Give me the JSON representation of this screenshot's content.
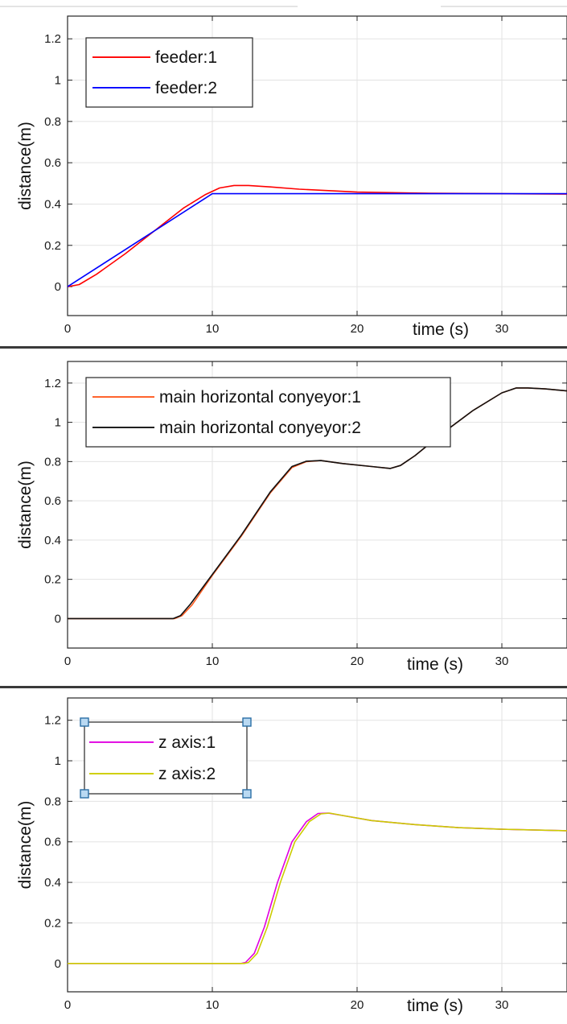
{
  "chart_data": [
    {
      "type": "line",
      "title": "",
      "xlabel": "time (s)",
      "ylabel": "distance(m)",
      "xlim": [
        0,
        34.5
      ],
      "ylim": [
        -0.14,
        1.31
      ],
      "xticks": [
        "0",
        "10",
        "20",
        "30"
      ],
      "yticks": [
        "0",
        "0.2",
        "0.4",
        "0.6",
        "0.8",
        "1",
        "1.2"
      ],
      "grid": true,
      "legend": "top-left",
      "series": [
        {
          "name": "feeder:1",
          "color": "#ff0000",
          "x": [
            0,
            0.8,
            2,
            4,
            6,
            8,
            9.5,
            10.5,
            11.5,
            12.5,
            14,
            16,
            20,
            25,
            30,
            34.5
          ],
          "y": [
            0,
            0.01,
            0.06,
            0.16,
            0.27,
            0.38,
            0.445,
            0.478,
            0.49,
            0.49,
            0.483,
            0.472,
            0.458,
            0.452,
            0.45,
            0.448
          ]
        },
        {
          "name": "feeder:2",
          "color": "#0000ff",
          "x": [
            0,
            10,
            15,
            20,
            25,
            30,
            34.5
          ],
          "y": [
            0,
            0.45,
            0.45,
            0.45,
            0.45,
            0.45,
            0.45
          ]
        }
      ]
    },
    {
      "type": "line",
      "title": "",
      "xlabel": "time (s)",
      "ylabel": "distance(m)",
      "xlim": [
        0,
        34.5
      ],
      "ylim": [
        -0.15,
        1.31
      ],
      "xticks": [
        "0",
        "10",
        "20",
        "30"
      ],
      "yticks": [
        "0",
        "0.2",
        "0.4",
        "0.6",
        "0.8",
        "1",
        "1.2"
      ],
      "grid": true,
      "legend": "top-left",
      "series": [
        {
          "name": "main horizontal conyeyor:1",
          "color": "#ff5a1f",
          "x": [
            0,
            7.4,
            7.9,
            8.6,
            10,
            12,
            14,
            15.5,
            16.5,
            17.5,
            19,
            21,
            22.3,
            23,
            24,
            26,
            28,
            30,
            31,
            31.8,
            33,
            34.5
          ],
          "y": [
            0,
            0,
            0.015,
            0.07,
            0.22,
            0.42,
            0.64,
            0.77,
            0.8,
            0.805,
            0.79,
            0.775,
            0.765,
            0.78,
            0.83,
            0.95,
            1.06,
            1.15,
            1.175,
            1.175,
            1.17,
            1.16
          ]
        },
        {
          "name": "main horizontal conyeyor:2",
          "color": "#111111",
          "x": [
            0,
            7.3,
            7.8,
            8.5,
            10,
            12,
            14,
            15.5,
            16.5,
            17.5,
            19,
            21,
            22.3,
            23,
            24,
            26,
            28,
            30,
            31,
            31.8,
            33,
            34.5
          ],
          "y": [
            0,
            0,
            0.015,
            0.075,
            0.225,
            0.425,
            0.645,
            0.775,
            0.802,
            0.805,
            0.79,
            0.775,
            0.765,
            0.78,
            0.83,
            0.95,
            1.06,
            1.15,
            1.175,
            1.175,
            1.17,
            1.16
          ]
        }
      ]
    },
    {
      "type": "line",
      "title": "",
      "xlabel": "time (s)",
      "ylabel": "distance(m)",
      "xlim": [
        0,
        34.5
      ],
      "ylim": [
        -0.14,
        1.31
      ],
      "xticks": [
        "0",
        "10",
        "20",
        "30"
      ],
      "yticks": [
        "0",
        "0.2",
        "0.4",
        "0.6",
        "0.8",
        "1",
        "1.2"
      ],
      "grid": true,
      "legend": "top-left",
      "series": [
        {
          "name": "z axis:1",
          "color": "#e000e0",
          "x": [
            0,
            12,
            12.3,
            12.9,
            13.6,
            14.5,
            15.5,
            16.5,
            17.3,
            18,
            19,
            21,
            24,
            27,
            30,
            34.5
          ],
          "y": [
            0,
            0,
            0.005,
            0.05,
            0.18,
            0.4,
            0.6,
            0.7,
            0.74,
            0.742,
            0.73,
            0.705,
            0.685,
            0.67,
            0.662,
            0.655
          ]
        },
        {
          "name": "z axis:2",
          "color": "#cccc00",
          "x": [
            0,
            12.2,
            12.5,
            13.1,
            13.8,
            14.7,
            15.7,
            16.7,
            17.5,
            18.1,
            19,
            21,
            24,
            27,
            30,
            34.5
          ],
          "y": [
            0,
            0,
            0.005,
            0.05,
            0.18,
            0.4,
            0.6,
            0.7,
            0.738,
            0.742,
            0.73,
            0.705,
            0.685,
            0.67,
            0.662,
            0.655
          ]
        }
      ]
    }
  ]
}
